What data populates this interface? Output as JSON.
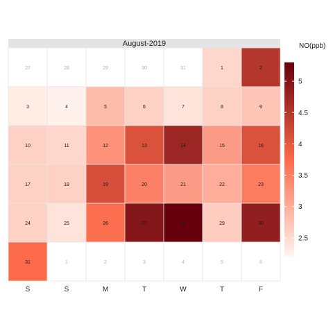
{
  "chart_data": {
    "type": "heatmap",
    "title": "August-2019",
    "legend_title": "NO(ppb)",
    "legend_placement": "right",
    "color_scale": {
      "low": "#FFF5F0",
      "mid": "#FB6A4A",
      "high": "#67000D",
      "min": 2.2,
      "max": 5.3
    },
    "legend_ticks": [
      2.5,
      3,
      3.5,
      4,
      4.5,
      5
    ],
    "legend_tick_labels": [
      "2.5",
      "3",
      "3.5",
      "4",
      "4.5",
      "5"
    ],
    "weekdays": [
      "S",
      "S",
      "M",
      "T",
      "W",
      "T",
      "F"
    ],
    "cells": [
      {
        "label": "27",
        "value": null,
        "in_month": false
      },
      {
        "label": "28",
        "value": null,
        "in_month": false
      },
      {
        "label": "29",
        "value": null,
        "in_month": false
      },
      {
        "label": "30",
        "value": null,
        "in_month": false
      },
      {
        "label": "31",
        "value": null,
        "in_month": false
      },
      {
        "label": "1",
        "value": 2.55,
        "in_month": true
      },
      {
        "label": "2",
        "value": 4.5,
        "in_month": true
      },
      {
        "label": "3",
        "value": 2.3,
        "in_month": true
      },
      {
        "label": "4",
        "value": 2.25,
        "in_month": true
      },
      {
        "label": "5",
        "value": 2.85,
        "in_month": true
      },
      {
        "label": "6",
        "value": 2.6,
        "in_month": true
      },
      {
        "label": "7",
        "value": 2.4,
        "in_month": true
      },
      {
        "label": "8",
        "value": 2.6,
        "in_month": true
      },
      {
        "label": "9",
        "value": 2.75,
        "in_month": true
      },
      {
        "label": "10",
        "value": 2.6,
        "in_month": true
      },
      {
        "label": "11",
        "value": 2.55,
        "in_month": true
      },
      {
        "label": "12",
        "value": 3.3,
        "in_month": true
      },
      {
        "label": "13",
        "value": 4.1,
        "in_month": true
      },
      {
        "label": "14",
        "value": 4.75,
        "in_month": true
      },
      {
        "label": "15",
        "value": 3.2,
        "in_month": true
      },
      {
        "label": "16",
        "value": 4.1,
        "in_month": true
      },
      {
        "label": "17",
        "value": 2.6,
        "in_month": true
      },
      {
        "label": "18",
        "value": 2.6,
        "in_month": true
      },
      {
        "label": "19",
        "value": 4.15,
        "in_month": true
      },
      {
        "label": "20",
        "value": 3.5,
        "in_month": true
      },
      {
        "label": "21",
        "value": 3.2,
        "in_month": true
      },
      {
        "label": "22",
        "value": 3.0,
        "in_month": true
      },
      {
        "label": "23",
        "value": 3.55,
        "in_month": true
      },
      {
        "label": "24",
        "value": 2.6,
        "in_month": true
      },
      {
        "label": "25",
        "value": 2.4,
        "in_month": true
      },
      {
        "label": "26",
        "value": 3.7,
        "in_month": true
      },
      {
        "label": "27",
        "value": 5.0,
        "in_month": true
      },
      {
        "label": "28",
        "value": 5.3,
        "in_month": true
      },
      {
        "label": "29",
        "value": 2.65,
        "in_month": true
      },
      {
        "label": "30",
        "value": 4.85,
        "in_month": true
      },
      {
        "label": "31",
        "value": 3.75,
        "in_month": true
      },
      {
        "label": "1",
        "value": null,
        "in_month": false
      },
      {
        "label": "2",
        "value": null,
        "in_month": false
      },
      {
        "label": "3",
        "value": null,
        "in_month": false
      },
      {
        "label": "4",
        "value": null,
        "in_month": false
      },
      {
        "label": "5",
        "value": null,
        "in_month": false
      },
      {
        "label": "6",
        "value": null,
        "in_month": false
      }
    ]
  }
}
